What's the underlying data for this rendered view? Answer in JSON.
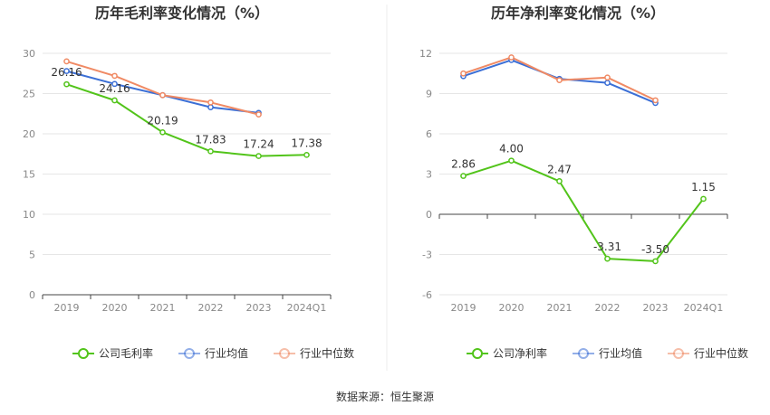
{
  "source": "数据来源：恒生聚源",
  "colors": {
    "company": "#52c41a",
    "industry_avg": "#3b6fd6",
    "industry_median": "#f08a64",
    "axis_text": "#888888",
    "grid": "#e6e6e6",
    "axis_line": "#444444",
    "label_text": "#333333"
  },
  "chart_data": [
    {
      "type": "line",
      "title": "历年毛利率变化情况（%）",
      "xlabel": "",
      "ylabel": "",
      "categories": [
        "2019",
        "2020",
        "2021",
        "2022",
        "2023",
        "2024Q1"
      ],
      "yticks": [
        0,
        5,
        10,
        15,
        20,
        25,
        30
      ],
      "ylim": [
        0,
        30
      ],
      "grid": true,
      "legend_position": "bottom",
      "series": [
        {
          "name": "公司毛利率",
          "color_key": "company",
          "values": [
            26.16,
            24.16,
            20.19,
            17.83,
            17.24,
            17.38
          ],
          "labels": [
            "26.16",
            "24.16",
            "20.19",
            "17.83",
            "17.24",
            "17.38"
          ]
        },
        {
          "name": "行业均值",
          "color_key": "industry_avg",
          "values": [
            27.8,
            26.2,
            24.8,
            23.3,
            22.6,
            null
          ]
        },
        {
          "name": "行业中位数",
          "color_key": "industry_median",
          "values": [
            29.0,
            27.2,
            24.8,
            23.9,
            22.4,
            null
          ]
        }
      ]
    },
    {
      "type": "line",
      "title": "历年净利率变化情况（%）",
      "xlabel": "",
      "ylabel": "",
      "categories": [
        "2019",
        "2020",
        "2021",
        "2022",
        "2023",
        "2024Q1"
      ],
      "yticks": [
        -6,
        -3,
        0,
        3,
        6,
        9,
        12
      ],
      "ylim": [
        -6,
        12
      ],
      "grid": true,
      "legend_position": "bottom",
      "series": [
        {
          "name": "公司净利率",
          "color_key": "company",
          "values": [
            2.86,
            4.0,
            2.47,
            -3.31,
            -3.5,
            1.15
          ],
          "labels": [
            "2.86",
            "4.00",
            "2.47",
            "-3.31",
            "-3.50",
            "1.15"
          ]
        },
        {
          "name": "行业均值",
          "color_key": "industry_avg",
          "values": [
            10.3,
            11.5,
            10.1,
            9.8,
            8.3,
            null
          ]
        },
        {
          "name": "行业中位数",
          "color_key": "industry_median",
          "values": [
            10.5,
            11.7,
            10.0,
            10.2,
            8.5,
            null
          ]
        }
      ]
    }
  ]
}
